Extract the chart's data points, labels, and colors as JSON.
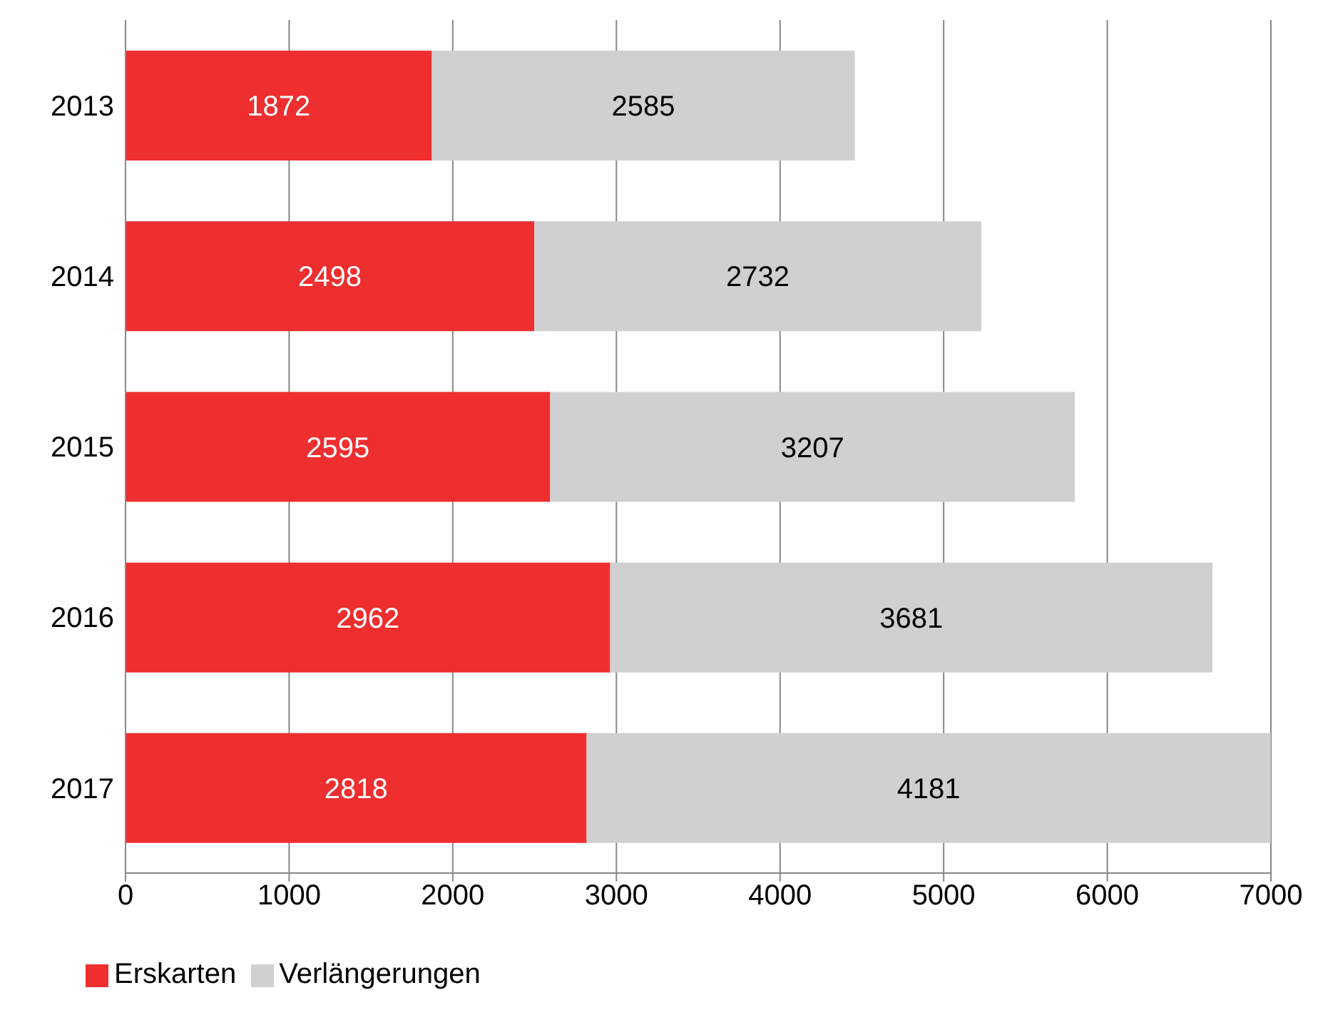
{
  "chart_data": {
    "type": "bar",
    "orientation": "horizontal",
    "stacked": true,
    "categories": [
      "2013",
      "2014",
      "2015",
      "2016",
      "2017"
    ],
    "series": [
      {
        "name": "Erskarten",
        "color": "#ee2e2f",
        "values": [
          1872,
          2498,
          2595,
          2962,
          2818
        ]
      },
      {
        "name": "Verlängerungen",
        "color": "#d0d0d0",
        "values": [
          2585,
          2732,
          3207,
          3681,
          4181
        ]
      }
    ],
    "xlim": [
      0,
      7000
    ],
    "xticks": [
      0,
      1000,
      2000,
      3000,
      4000,
      5000,
      6000,
      7000
    ],
    "grid": "x",
    "legend": "bottom left",
    "data_labels": true
  }
}
